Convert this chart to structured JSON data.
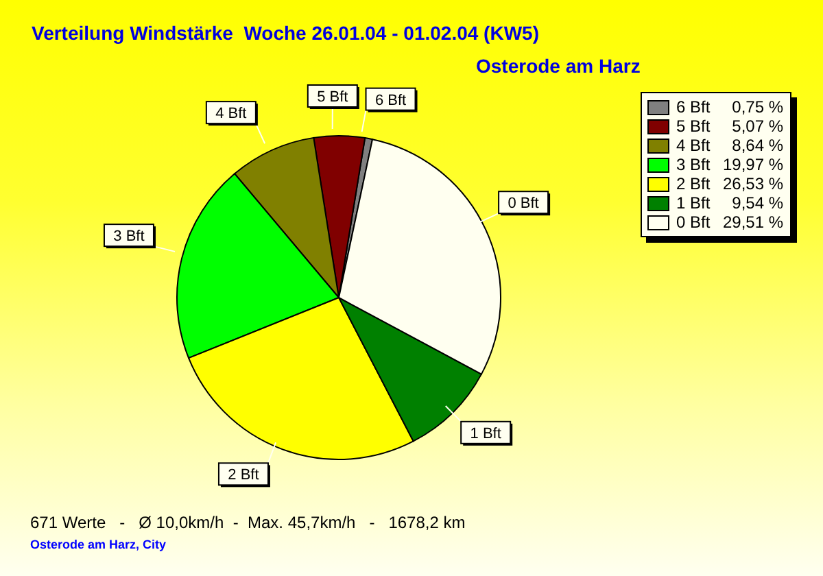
{
  "chart_data": {
    "type": "pie",
    "title": "Verteilung Windstärke  Woche 26.01.04 - 01.02.04 (KW5)",
    "subtitle": "Osterode am Harz",
    "categories": [
      "6 Bft",
      "5 Bft",
      "4 Bft",
      "3 Bft",
      "2 Bft",
      "1 Bft",
      "0 Bft"
    ],
    "values": [
      0.75,
      5.07,
      8.64,
      19.97,
      26.53,
      9.54,
      29.51
    ],
    "value_labels": [
      "0,75 %",
      "5,07 %",
      "8,64 %",
      "19,97 %",
      "26,53 %",
      "9,54 %",
      "29,51 %"
    ],
    "colors": [
      "#808080",
      "#800000",
      "#808000",
      "#00ff00",
      "#ffff00",
      "#008000",
      "#fffff0"
    ],
    "legend": "top right",
    "annotations": [
      "671 Werte   -   Ø 10,0km/h  -  Max. 45,7km/h   -   1678,2 km",
      "Osterode am Harz, City"
    ]
  }
}
